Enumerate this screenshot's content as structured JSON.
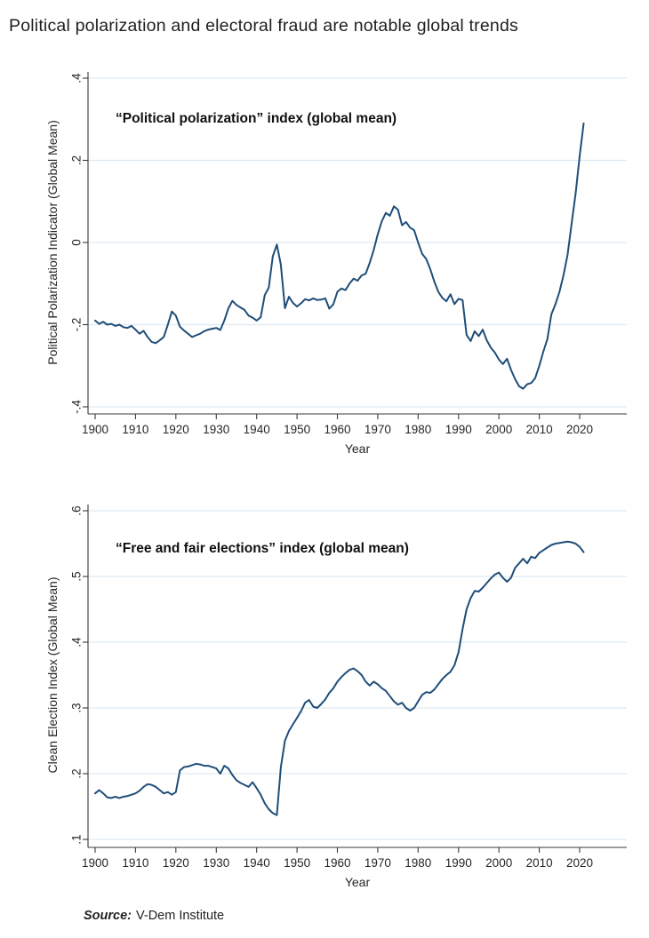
{
  "page_title": "Political polarization and electoral fraud are notable global trends",
  "source_note": {
    "label": "Source:",
    "text": "V-Dem Institute"
  },
  "line_color": "#1f4e79",
  "grid_color": "#dfeaf2",
  "chart_data": [
    {
      "type": "line",
      "title": "“Political polarization” index (global mean)",
      "ylabel": "Political Polarization Indicator (Global Mean)",
      "xlabel": "Year",
      "ylim": [
        -0.4,
        0.4
      ],
      "xlim": [
        1900,
        2021
      ],
      "grid": true,
      "legend": "none",
      "yticks": {
        "values": [
          0.4,
          0.2,
          0,
          -0.2,
          -0.4
        ],
        "labels": [
          ".4",
          ".2",
          "0",
          "-.2",
          "-.4"
        ]
      },
      "xticks": [
        1900,
        1910,
        1920,
        1930,
        1940,
        1950,
        1960,
        1970,
        1980,
        1990,
        2000,
        2010,
        2020
      ],
      "series": [
        {
          "name": "Political polarization index (global mean)",
          "points": [
            [
              1900,
              -0.19
            ],
            [
              1901,
              -0.198
            ],
            [
              1902,
              -0.193
            ],
            [
              1903,
              -0.2
            ],
            [
              1904,
              -0.198
            ],
            [
              1905,
              -0.203
            ],
            [
              1906,
              -0.2
            ],
            [
              1907,
              -0.206
            ],
            [
              1908,
              -0.208
            ],
            [
              1909,
              -0.203
            ],
            [
              1910,
              -0.212
            ],
            [
              1911,
              -0.222
            ],
            [
              1912,
              -0.215
            ],
            [
              1913,
              -0.23
            ],
            [
              1914,
              -0.242
            ],
            [
              1915,
              -0.245
            ],
            [
              1916,
              -0.238
            ],
            [
              1917,
              -0.23
            ],
            [
              1918,
              -0.2
            ],
            [
              1919,
              -0.168
            ],
            [
              1920,
              -0.178
            ],
            [
              1921,
              -0.205
            ],
            [
              1922,
              -0.214
            ],
            [
              1923,
              -0.222
            ],
            [
              1924,
              -0.23
            ],
            [
              1925,
              -0.226
            ],
            [
              1926,
              -0.222
            ],
            [
              1927,
              -0.216
            ],
            [
              1928,
              -0.212
            ],
            [
              1929,
              -0.21
            ],
            [
              1930,
              -0.208
            ],
            [
              1931,
              -0.213
            ],
            [
              1932,
              -0.19
            ],
            [
              1933,
              -0.16
            ],
            [
              1934,
              -0.142
            ],
            [
              1935,
              -0.152
            ],
            [
              1936,
              -0.158
            ],
            [
              1937,
              -0.164
            ],
            [
              1938,
              -0.178
            ],
            [
              1939,
              -0.183
            ],
            [
              1940,
              -0.19
            ],
            [
              1941,
              -0.182
            ],
            [
              1942,
              -0.128
            ],
            [
              1943,
              -0.11
            ],
            [
              1944,
              -0.034
            ],
            [
              1945,
              -0.005
            ],
            [
              1946,
              -0.054
            ],
            [
              1947,
              -0.16
            ],
            [
              1948,
              -0.132
            ],
            [
              1949,
              -0.147
            ],
            [
              1950,
              -0.156
            ],
            [
              1951,
              -0.148
            ],
            [
              1952,
              -0.138
            ],
            [
              1953,
              -0.141
            ],
            [
              1954,
              -0.136
            ],
            [
              1955,
              -0.14
            ],
            [
              1956,
              -0.139
            ],
            [
              1957,
              -0.136
            ],
            [
              1958,
              -0.161
            ],
            [
              1959,
              -0.15
            ],
            [
              1960,
              -0.12
            ],
            [
              1961,
              -0.112
            ],
            [
              1962,
              -0.116
            ],
            [
              1963,
              -0.1
            ],
            [
              1964,
              -0.088
            ],
            [
              1965,
              -0.093
            ],
            [
              1966,
              -0.08
            ],
            [
              1967,
              -0.076
            ],
            [
              1968,
              -0.05
            ],
            [
              1969,
              -0.018
            ],
            [
              1970,
              0.02
            ],
            [
              1971,
              0.052
            ],
            [
              1972,
              0.072
            ],
            [
              1973,
              0.065
            ],
            [
              1974,
              0.088
            ],
            [
              1975,
              0.08
            ],
            [
              1976,
              0.042
            ],
            [
              1977,
              0.05
            ],
            [
              1978,
              0.036
            ],
            [
              1979,
              0.03
            ],
            [
              1980,
              0.0
            ],
            [
              1981,
              -0.028
            ],
            [
              1982,
              -0.04
            ],
            [
              1983,
              -0.065
            ],
            [
              1984,
              -0.095
            ],
            [
              1985,
              -0.12
            ],
            [
              1986,
              -0.135
            ],
            [
              1987,
              -0.143
            ],
            [
              1988,
              -0.126
            ],
            [
              1989,
              -0.15
            ],
            [
              1990,
              -0.137
            ],
            [
              1991,
              -0.14
            ],
            [
              1992,
              -0.225
            ],
            [
              1993,
              -0.24
            ],
            [
              1994,
              -0.216
            ],
            [
              1995,
              -0.228
            ],
            [
              1996,
              -0.212
            ],
            [
              1997,
              -0.238
            ],
            [
              1998,
              -0.256
            ],
            [
              1999,
              -0.268
            ],
            [
              2000,
              -0.285
            ],
            [
              2001,
              -0.296
            ],
            [
              2002,
              -0.283
            ],
            [
              2003,
              -0.31
            ],
            [
              2004,
              -0.332
            ],
            [
              2005,
              -0.35
            ],
            [
              2006,
              -0.356
            ],
            [
              2007,
              -0.345
            ],
            [
              2008,
              -0.342
            ],
            [
              2009,
              -0.33
            ],
            [
              2010,
              -0.3
            ],
            [
              2011,
              -0.266
            ],
            [
              2012,
              -0.235
            ],
            [
              2013,
              -0.175
            ],
            [
              2014,
              -0.15
            ],
            [
              2015,
              -0.12
            ],
            [
              2016,
              -0.08
            ],
            [
              2017,
              -0.03
            ],
            [
              2018,
              0.045
            ],
            [
              2019,
              0.12
            ],
            [
              2020,
              0.21
            ],
            [
              2021,
              0.29
            ]
          ]
        }
      ]
    },
    {
      "type": "line",
      "title": "“Free and fair elections” index (global mean)",
      "ylabel": "Clean Election Index (Global Mean)",
      "xlabel": "Year",
      "ylim": [
        0.1,
        0.6
      ],
      "xlim": [
        1900,
        2021
      ],
      "grid": true,
      "legend": "none",
      "yticks": {
        "values": [
          0.6,
          0.5,
          0.4,
          0.3,
          0.2,
          0.1
        ],
        "labels": [
          ".6",
          ".5",
          ".4",
          ".3",
          ".2",
          ".1"
        ]
      },
      "xticks": [
        1900,
        1910,
        1920,
        1930,
        1940,
        1950,
        1960,
        1970,
        1980,
        1990,
        2000,
        2010,
        2020
      ],
      "series": [
        {
          "name": "Clean election index (global mean)",
          "points": [
            [
              1900,
              0.17
            ],
            [
              1901,
              0.175
            ],
            [
              1902,
              0.17
            ],
            [
              1903,
              0.164
            ],
            [
              1904,
              0.163
            ],
            [
              1905,
              0.165
            ],
            [
              1906,
              0.163
            ],
            [
              1907,
              0.165
            ],
            [
              1908,
              0.166
            ],
            [
              1909,
              0.168
            ],
            [
              1910,
              0.17
            ],
            [
              1911,
              0.174
            ],
            [
              1912,
              0.18
            ],
            [
              1913,
              0.184
            ],
            [
              1914,
              0.183
            ],
            [
              1915,
              0.18
            ],
            [
              1916,
              0.175
            ],
            [
              1917,
              0.17
            ],
            [
              1918,
              0.172
            ],
            [
              1919,
              0.168
            ],
            [
              1920,
              0.172
            ],
            [
              1921,
              0.205
            ],
            [
              1922,
              0.21
            ],
            [
              1923,
              0.211
            ],
            [
              1924,
              0.213
            ],
            [
              1925,
              0.215
            ],
            [
              1926,
              0.214
            ],
            [
              1927,
              0.212
            ],
            [
              1928,
              0.212
            ],
            [
              1929,
              0.21
            ],
            [
              1930,
              0.208
            ],
            [
              1931,
              0.2
            ],
            [
              1932,
              0.212
            ],
            [
              1933,
              0.208
            ],
            [
              1934,
              0.198
            ],
            [
              1935,
              0.19
            ],
            [
              1936,
              0.186
            ],
            [
              1937,
              0.183
            ],
            [
              1938,
              0.18
            ],
            [
              1939,
              0.187
            ],
            [
              1940,
              0.178
            ],
            [
              1941,
              0.168
            ],
            [
              1942,
              0.155
            ],
            [
              1943,
              0.146
            ],
            [
              1944,
              0.14
            ],
            [
              1945,
              0.137
            ],
            [
              1946,
              0.21
            ],
            [
              1947,
              0.25
            ],
            [
              1948,
              0.265
            ],
            [
              1949,
              0.275
            ],
            [
              1950,
              0.285
            ],
            [
              1951,
              0.295
            ],
            [
              1952,
              0.308
            ],
            [
              1953,
              0.312
            ],
            [
              1954,
              0.302
            ],
            [
              1955,
              0.3
            ],
            [
              1956,
              0.306
            ],
            [
              1957,
              0.313
            ],
            [
              1958,
              0.323
            ],
            [
              1959,
              0.33
            ],
            [
              1960,
              0.34
            ],
            [
              1961,
              0.347
            ],
            [
              1962,
              0.353
            ],
            [
              1963,
              0.358
            ],
            [
              1964,
              0.36
            ],
            [
              1965,
              0.356
            ],
            [
              1966,
              0.35
            ],
            [
              1967,
              0.34
            ],
            [
              1968,
              0.334
            ],
            [
              1969,
              0.34
            ],
            [
              1970,
              0.336
            ],
            [
              1971,
              0.33
            ],
            [
              1972,
              0.326
            ],
            [
              1973,
              0.318
            ],
            [
              1974,
              0.31
            ],
            [
              1975,
              0.305
            ],
            [
              1976,
              0.308
            ],
            [
              1977,
              0.3
            ],
            [
              1978,
              0.296
            ],
            [
              1979,
              0.3
            ],
            [
              1980,
              0.31
            ],
            [
              1981,
              0.32
            ],
            [
              1982,
              0.324
            ],
            [
              1983,
              0.323
            ],
            [
              1984,
              0.328
            ],
            [
              1985,
              0.336
            ],
            [
              1986,
              0.344
            ],
            [
              1987,
              0.35
            ],
            [
              1988,
              0.355
            ],
            [
              1989,
              0.365
            ],
            [
              1990,
              0.385
            ],
            [
              1991,
              0.42
            ],
            [
              1992,
              0.45
            ],
            [
              1993,
              0.467
            ],
            [
              1994,
              0.478
            ],
            [
              1995,
              0.477
            ],
            [
              1996,
              0.483
            ],
            [
              1997,
              0.49
            ],
            [
              1998,
              0.497
            ],
            [
              1999,
              0.503
            ],
            [
              2000,
              0.506
            ],
            [
              2001,
              0.498
            ],
            [
              2002,
              0.492
            ],
            [
              2003,
              0.498
            ],
            [
              2004,
              0.513
            ],
            [
              2005,
              0.52
            ],
            [
              2006,
              0.527
            ],
            [
              2007,
              0.52
            ],
            [
              2008,
              0.53
            ],
            [
              2009,
              0.528
            ],
            [
              2010,
              0.536
            ],
            [
              2011,
              0.54
            ],
            [
              2012,
              0.544
            ],
            [
              2013,
              0.548
            ],
            [
              2014,
              0.55
            ],
            [
              2015,
              0.551
            ],
            [
              2016,
              0.552
            ],
            [
              2017,
              0.553
            ],
            [
              2018,
              0.552
            ],
            [
              2019,
              0.55
            ],
            [
              2020,
              0.545
            ],
            [
              2021,
              0.537
            ]
          ]
        }
      ]
    }
  ]
}
